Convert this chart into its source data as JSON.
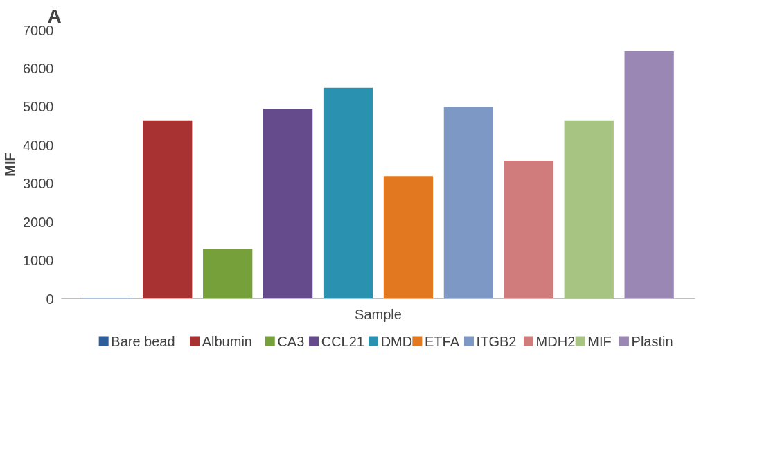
{
  "chart_data": {
    "type": "bar",
    "title": "A",
    "xlabel": "Sample",
    "ylabel": "MIF",
    "categories": [
      null
    ],
    "series": [
      {
        "name": "Bare bead",
        "color": "#2e5f9a",
        "values": [
          20
        ]
      },
      {
        "name": "Albumin",
        "color": "#a83232",
        "values": [
          4650
        ]
      },
      {
        "name": "CA3",
        "color": "#76a03a",
        "values": [
          1300
        ]
      },
      {
        "name": "CCL21",
        "color": "#654a8c",
        "values": [
          4950
        ]
      },
      {
        "name": "DMD",
        "color": "#2a92b0",
        "values": [
          5500
        ]
      },
      {
        "name": "ETFA",
        "color": "#e2781f",
        "values": [
          3200
        ]
      },
      {
        "name": "ITGB2",
        "color": "#7d98c4",
        "values": [
          5000
        ]
      },
      {
        "name": "MDH2",
        "color": "#d07c7c",
        "values": [
          3600
        ]
      },
      {
        "name": "MIF",
        "color": "#a8c482",
        "values": [
          4650
        ]
      },
      {
        "name": "Plastin",
        "color": "#9a87b3",
        "values": [
          6450
        ]
      }
    ],
    "ylim": [
      0,
      7000
    ],
    "yticks": [
      0,
      1000,
      2000,
      3000,
      4000,
      5000,
      6000,
      7000
    ],
    "tick_labels": "y",
    "grid": false,
    "legend": "bottom"
  }
}
